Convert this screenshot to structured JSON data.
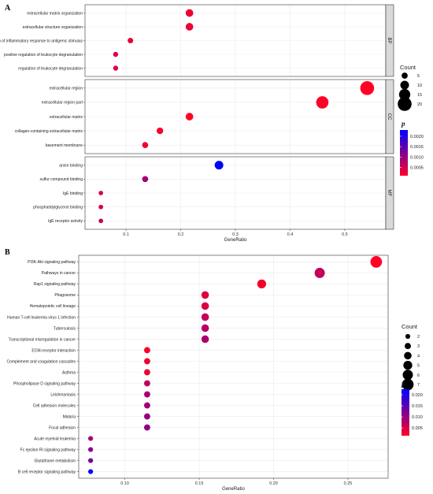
{
  "chart_data": [
    {
      "panel_label": "A",
      "type": "scatter",
      "style": "dot-plot",
      "xlabel": "GeneRatio",
      "xlim": [
        0.025,
        0.575
      ],
      "xticks": [
        0.1,
        0.2,
        0.3,
        0.4,
        0.5
      ],
      "xtick_labels": [
        "0.1",
        "0.2",
        "0.3",
        "0.4",
        "0.5"
      ],
      "grid": true,
      "facets": [
        {
          "name": "BP",
          "terms": [
            {
              "label": "extracellular matrix organization",
              "gene_ratio": 0.216,
              "count": 8,
              "p": 0.00025
            },
            {
              "label": "extracellular structure organization",
              "gene_ratio": 0.216,
              "count": 8,
              "p": 0.00025
            },
            {
              "label": "regulation of inflammatory response to antigenic stimulus",
              "gene_ratio": 0.108,
              "count": 4,
              "p": 0.0003
            },
            {
              "label": "positive regulation of leukocyte degranulation",
              "gene_ratio": 0.081,
              "count": 3,
              "p": 0.00035
            },
            {
              "label": "regulation of leukocyte degranulation",
              "gene_ratio": 0.081,
              "count": 3,
              "p": 0.00035
            }
          ]
        },
        {
          "name": "CC",
          "terms": [
            {
              "label": "extracellular region",
              "gene_ratio": 0.541,
              "count": 20,
              "p": 0.0001
            },
            {
              "label": "extracellular region part",
              "gene_ratio": 0.459,
              "count": 17,
              "p": 0.0001
            },
            {
              "label": "extracellular matrix",
              "gene_ratio": 0.216,
              "count": 8,
              "p": 0.0001
            },
            {
              "label": "collagen-containing extracellular matrix",
              "gene_ratio": 0.162,
              "count": 6,
              "p": 0.00015
            },
            {
              "label": "basement membrane",
              "gene_ratio": 0.135,
              "count": 5,
              "p": 0.0002
            }
          ]
        },
        {
          "name": "MF",
          "terms": [
            {
              "label": "anion binding",
              "gene_ratio": 0.27,
              "count": 10,
              "p": 0.0023
            },
            {
              "label": "sulfur compound binding",
              "gene_ratio": 0.135,
              "count": 5,
              "p": 0.0009
            },
            {
              "label": "IgE binding",
              "gene_ratio": 0.054,
              "count": 2,
              "p": 0.0004
            },
            {
              "label": "phosphatidylglycerol binding",
              "gene_ratio": 0.054,
              "count": 2,
              "p": 0.0005
            },
            {
              "label": "IgE receptor activity",
              "gene_ratio": 0.054,
              "count": 2,
              "p": 0.0006
            }
          ]
        }
      ],
      "size_legend": {
        "title": "Count",
        "values": [
          5,
          10,
          15,
          20
        ]
      },
      "color_legend": {
        "title": "p",
        "ticks": [
          0.002,
          0.0015,
          0.001,
          0.0005
        ],
        "tick_labels": [
          "0.0020",
          "0.0015",
          "0.0010",
          "0.0005"
        ],
        "range": [
          0.0001,
          0.0023
        ],
        "low_color": "#ff0026",
        "high_color": "#0000ff"
      }
    },
    {
      "panel_label": "B",
      "type": "scatter",
      "style": "dot-plot",
      "xlabel": "GeneRatio",
      "xlim": [
        0.069,
        0.277
      ],
      "xticks": [
        0.1,
        0.15,
        0.2,
        0.25
      ],
      "xtick_labels": [
        "0.10",
        "0.15",
        "0.20",
        "0.25"
      ],
      "grid": true,
      "terms": [
        {
          "label": "PI3K-Akt signaling pathway",
          "gene_ratio": 0.269,
          "count": 7,
          "p": 0.0015
        },
        {
          "label": "Pathways in cancer",
          "gene_ratio": 0.231,
          "count": 6,
          "p": 0.0065
        },
        {
          "label": "Rap1 signaling pathway",
          "gene_ratio": 0.192,
          "count": 5,
          "p": 0.002
        },
        {
          "label": "Phagosome",
          "gene_ratio": 0.154,
          "count": 4,
          "p": 0.004
        },
        {
          "label": "Hematopoietic cell lineage",
          "gene_ratio": 0.154,
          "count": 4,
          "p": 0.0045
        },
        {
          "label": "Human T-cell leukemia virus 1 infection",
          "gene_ratio": 0.154,
          "count": 4,
          "p": 0.0065
        },
        {
          "label": "Tuberculosis",
          "gene_ratio": 0.154,
          "count": 4,
          "p": 0.0075
        },
        {
          "label": "Transcriptional misregulation in cancer",
          "gene_ratio": 0.154,
          "count": 4,
          "p": 0.0085
        },
        {
          "label": "ECM-receptor interaction",
          "gene_ratio": 0.115,
          "count": 3,
          "p": 0.002
        },
        {
          "label": "Complement and coagulation cascades",
          "gene_ratio": 0.115,
          "count": 3,
          "p": 0.003
        },
        {
          "label": "Asthma",
          "gene_ratio": 0.115,
          "count": 3,
          "p": 0.003
        },
        {
          "label": "Phospholipase D signaling pathway",
          "gene_ratio": 0.115,
          "count": 3,
          "p": 0.0065
        },
        {
          "label": "Leishmaniasis",
          "gene_ratio": 0.115,
          "count": 3,
          "p": 0.0085
        },
        {
          "label": "Cell adhesion molecules",
          "gene_ratio": 0.115,
          "count": 3,
          "p": 0.0095
        },
        {
          "label": "Malaria",
          "gene_ratio": 0.115,
          "count": 3,
          "p": 0.01
        },
        {
          "label": "Focal adhesion",
          "gene_ratio": 0.115,
          "count": 3,
          "p": 0.0105
        },
        {
          "label": "Acute myeloid leukemia",
          "gene_ratio": 0.077,
          "count": 2,
          "p": 0.0085
        },
        {
          "label": "Fc epsilon RI signaling pathway",
          "gene_ratio": 0.077,
          "count": 2,
          "p": 0.011
        },
        {
          "label": "Glutathione metabolism",
          "gene_ratio": 0.077,
          "count": 2,
          "p": 0.013
        },
        {
          "label": "B cell receptor signaling pathway",
          "gene_ratio": 0.077,
          "count": 2,
          "p": 0.022
        }
      ],
      "size_legend": {
        "title": "Count",
        "values": [
          2,
          3,
          4,
          5,
          6,
          7
        ]
      },
      "color_legend": {
        "title": "p",
        "ticks": [
          0.02,
          0.015,
          0.01,
          0.005
        ],
        "tick_labels": [
          "0.020",
          "0.015",
          "0.010",
          "0.005"
        ],
        "range": [
          0.0015,
          0.0225
        ],
        "low_color": "#ff0026",
        "high_color": "#0000ff"
      }
    }
  ]
}
